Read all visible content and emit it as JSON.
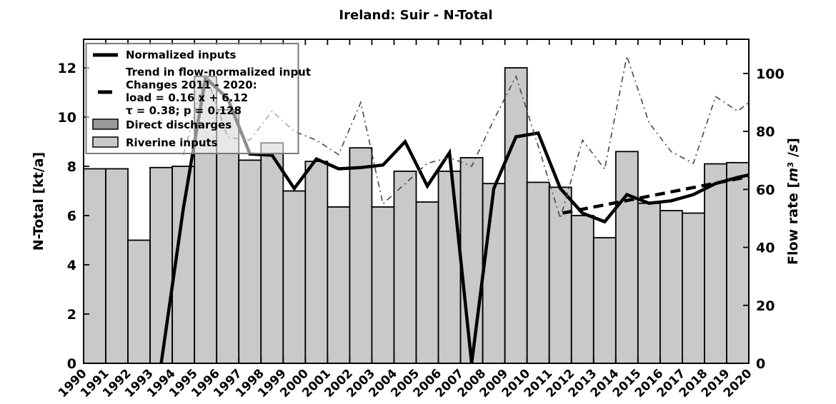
{
  "title": "Ireland: Suir - N-Total",
  "legend": {
    "normalized": {
      "label": "Normalized inputs"
    },
    "trend": {
      "lines": [
        "Trend in flow-normalized input",
        "Changes 2011 - 2020:",
        "load =  0.16 x +  6.12",
        "τ =  0.38; p =  0.128"
      ]
    },
    "direct": {
      "label": "Direct discharges"
    },
    "riverine": {
      "label": "Riverine inputs"
    }
  },
  "colors": {
    "riverine_bar": "#c9c9c9",
    "direct_bar": "#9a9a9a",
    "normalized_line": "#000000",
    "trend_line": "#000000",
    "flow_line": "#474747",
    "legend_border": "#7a7a7a"
  },
  "chart_data": {
    "type": "bar",
    "title": "Ireland: Suir - N-Total",
    "grid": false,
    "legend_position": "upper-left",
    "x_range": [
      1990,
      2020
    ],
    "x_ticks": [
      1990,
      1991,
      1992,
      1993,
      1994,
      1995,
      1996,
      1997,
      1998,
      1999,
      2000,
      2001,
      2002,
      2003,
      2004,
      2005,
      2006,
      2007,
      2008,
      2009,
      2010,
      2011,
      2012,
      2013,
      2014,
      2015,
      2016,
      2017,
      2018,
      2019,
      2020
    ],
    "y_left": {
      "label": "N-Total [kt/a]",
      "lim": [
        0,
        13.16
      ],
      "ticks": [
        0,
        2,
        4,
        6,
        8,
        10,
        12
      ]
    },
    "y_right": {
      "label": "Flow rate [m³ /s]",
      "label_parts": [
        "Flow rate [",
        "m",
        "³ /",
        "s",
        "]"
      ],
      "lim": [
        0,
        111.8
      ],
      "ticks": [
        0,
        20,
        40,
        60,
        80,
        100
      ]
    },
    "categories": [
      1990,
      1991,
      1992,
      1993,
      1994,
      1995,
      1996,
      1997,
      1998,
      1999,
      2000,
      2001,
      2002,
      2003,
      2004,
      2005,
      2006,
      2007,
      2008,
      2009,
      2010,
      2011,
      2012,
      2013,
      2014,
      2015,
      2016,
      2017,
      2018,
      2019
    ],
    "series": [
      {
        "name": "Riverine inputs",
        "type": "bar",
        "axis": "left",
        "values": [
          7.9,
          7.9,
          5.0,
          7.95,
          8.0,
          11.65,
          10.3,
          8.25,
          8.95,
          7.0,
          8.2,
          6.35,
          8.75,
          6.35,
          7.8,
          6.55,
          7.8,
          8.35,
          7.3,
          12.0,
          7.35,
          7.15,
          6.0,
          5.1,
          8.6,
          6.5,
          6.2,
          6.1,
          8.1,
          8.15
        ]
      },
      {
        "name": "Direct discharges",
        "type": "bar",
        "axis": "left",
        "values": [
          0,
          0,
          0,
          0,
          0,
          0,
          0,
          0,
          0,
          0,
          0,
          0,
          0,
          0,
          0,
          0,
          0,
          0,
          0,
          0,
          0,
          0,
          0,
          0,
          0,
          0,
          0,
          0,
          0,
          0
        ]
      },
      {
        "name": "Normalized inputs",
        "type": "line",
        "style": "solid",
        "axis": "left",
        "x": [
          1993.5,
          1994.5,
          1995.5,
          1996.5,
          1997.5,
          1998.5,
          1999.5,
          2000.5,
          2001.5,
          2002.5,
          2003.5,
          2004.5,
          2005.5,
          2006.5,
          2007.5,
          2008.5,
          2009.5,
          2010.5,
          2011.5,
          2012.5,
          2013.5,
          2014.5,
          2015.5,
          2016.5,
          2017.5,
          2018.5,
          2019.5,
          2020
        ],
        "y": [
          0,
          6.3,
          11.6,
          10.75,
          8.5,
          8.45,
          7.1,
          8.3,
          7.9,
          7.95,
          8.05,
          9.0,
          7.2,
          8.55,
          0,
          7.1,
          9.2,
          9.35,
          7.1,
          6.1,
          5.75,
          6.85,
          6.5,
          6.6,
          6.85,
          7.3,
          7.55,
          7.65
        ]
      },
      {
        "name": "Trend in flow-normalized input",
        "type": "line",
        "style": "dashed",
        "axis": "left",
        "x": [
          2011.6,
          2020
        ],
        "y": [
          6.1,
          7.58
        ]
      },
      {
        "name": "Flow rate",
        "type": "line",
        "style": "dashdot",
        "axis": "right",
        "x": [
          1994.5,
          1995.5,
          1996.5,
          1997.5,
          1998.5,
          1999.5,
          2000.5,
          2001.5,
          2002.5,
          2003.5,
          2004.5,
          2005.5,
          2006.5,
          2007.5,
          2008.5,
          2009.5,
          2010.5,
          2011.5,
          2012.5,
          2013.5,
          2014.5,
          2015.5,
          2016.5,
          2017.5,
          2018.5,
          2019.5,
          2020
        ],
        "y": [
          72,
          100,
          78,
          77,
          87,
          80,
          77,
          72,
          90,
          55,
          62,
          69,
          71,
          68,
          84,
          99,
          75,
          50,
          77,
          67,
          106,
          83,
          73,
          69,
          92,
          87,
          90
        ]
      }
    ]
  }
}
